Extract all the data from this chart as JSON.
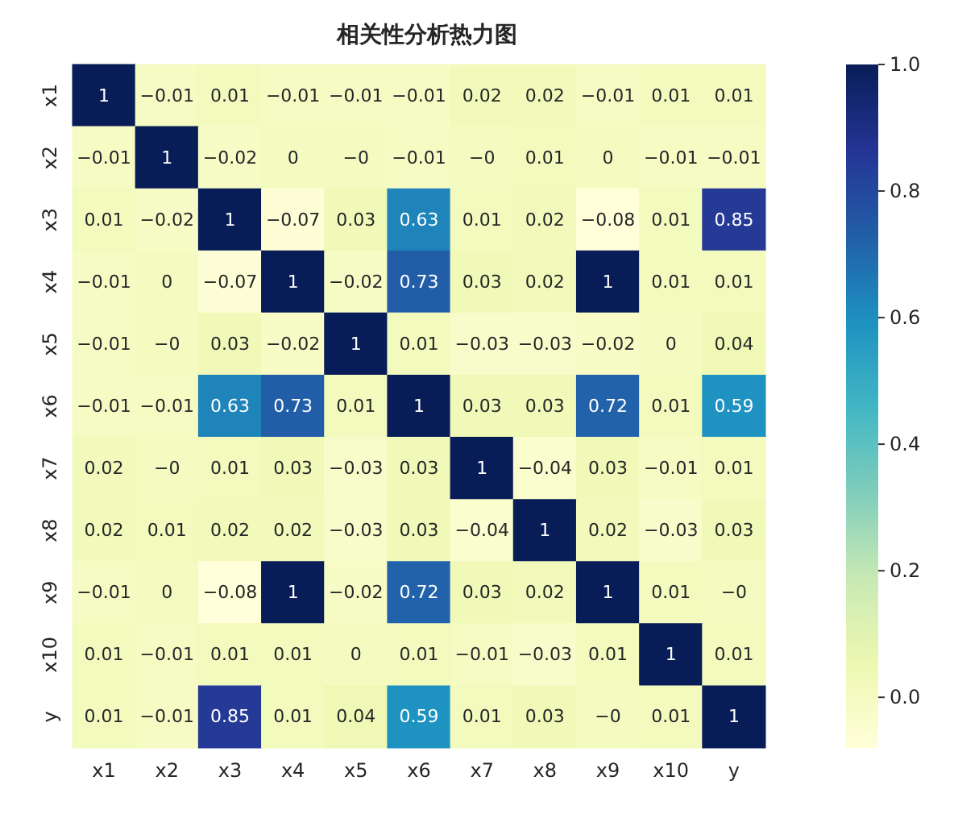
{
  "chart_data": {
    "type": "heatmap",
    "title": "相关性分析热力图",
    "categories": [
      "x1",
      "x2",
      "x3",
      "x4",
      "x5",
      "x6",
      "x7",
      "x8",
      "x9",
      "x10",
      "y"
    ],
    "y_categories": [
      "x1",
      "x2",
      "x3",
      "x4",
      "x5",
      "x6",
      "x7",
      "x8",
      "x9",
      "x10",
      "y"
    ],
    "cells": [
      [
        1,
        -0.01,
        0.01,
        -0.01,
        -0.01,
        -0.01,
        0.02,
        0.02,
        -0.01,
        0.01,
        0.01
      ],
      [
        -0.01,
        1,
        -0.02,
        0,
        0,
        -0.01,
        0,
        0.01,
        0,
        -0.01,
        -0.01
      ],
      [
        0.01,
        -0.02,
        1,
        -0.07,
        0.03,
        0.63,
        0.01,
        0.02,
        -0.08,
        0.01,
        0.85
      ],
      [
        -0.01,
        0,
        -0.07,
        1,
        -0.02,
        0.73,
        0.03,
        0.02,
        1,
        0.01,
        0.01
      ],
      [
        -0.01,
        0,
        0.03,
        -0.02,
        1,
        0.01,
        -0.03,
        -0.03,
        -0.02,
        0,
        0.04
      ],
      [
        -0.01,
        -0.01,
        0.63,
        0.73,
        0.01,
        1,
        0.03,
        0.03,
        0.72,
        0.01,
        0.59
      ],
      [
        0.02,
        0,
        0.01,
        0.03,
        -0.03,
        0.03,
        1,
        -0.04,
        0.03,
        -0.01,
        0.01
      ],
      [
        0.02,
        0.01,
        0.02,
        0.02,
        -0.03,
        0.03,
        -0.04,
        1,
        0.02,
        -0.03,
        0.03
      ],
      [
        -0.01,
        0,
        -0.08,
        1,
        -0.02,
        0.72,
        0.03,
        0.02,
        1,
        0.01,
        0
      ],
      [
        0.01,
        -0.01,
        0.01,
        0.01,
        0,
        0.01,
        -0.01,
        -0.03,
        0.01,
        1,
        0.01
      ],
      [
        0.01,
        -0.01,
        0.85,
        0.01,
        0.04,
        0.59,
        0.01,
        0.03,
        0,
        0.01,
        1
      ]
    ],
    "cell_labels": [
      [
        "1",
        "−0.01",
        "0.01",
        "−0.01",
        "−0.01",
        "−0.01",
        "0.02",
        "0.02",
        "−0.01",
        "0.01",
        "0.01"
      ],
      [
        "−0.01",
        "1",
        "−0.02",
        "0",
        "−0",
        "−0.01",
        "−0",
        "0.01",
        "0",
        "−0.01",
        "−0.01"
      ],
      [
        "0.01",
        "−0.02",
        "1",
        "−0.07",
        "0.03",
        "0.63",
        "0.01",
        "0.02",
        "−0.08",
        "0.01",
        "0.85"
      ],
      [
        "−0.01",
        "0",
        "−0.07",
        "1",
        "−0.02",
        "0.73",
        "0.03",
        "0.02",
        "1",
        "0.01",
        "0.01"
      ],
      [
        "−0.01",
        "−0",
        "0.03",
        "−0.02",
        "1",
        "0.01",
        "−0.03",
        "−0.03",
        "−0.02",
        "0",
        "0.04"
      ],
      [
        "−0.01",
        "−0.01",
        "0.63",
        "0.73",
        "0.01",
        "1",
        "0.03",
        "0.03",
        "0.72",
        "0.01",
        "0.59"
      ],
      [
        "0.02",
        "−0",
        "0.01",
        "0.03",
        "−0.03",
        "0.03",
        "1",
        "−0.04",
        "0.03",
        "−0.01",
        "0.01"
      ],
      [
        "0.02",
        "0.01",
        "0.02",
        "0.02",
        "−0.03",
        "0.03",
        "−0.04",
        "1",
        "0.02",
        "−0.03",
        "0.03"
      ],
      [
        "−0.01",
        "0",
        "−0.08",
        "1",
        "−0.02",
        "0.72",
        "0.03",
        "0.02",
        "1",
        "0.01",
        "−0"
      ],
      [
        "0.01",
        "−0.01",
        "0.01",
        "0.01",
        "0",
        "0.01",
        "−0.01",
        "−0.03",
        "0.01",
        "1",
        "0.01"
      ],
      [
        "0.01",
        "−0.01",
        "0.85",
        "0.01",
        "0.04",
        "0.59",
        "0.01",
        "0.03",
        "−0",
        "0.01",
        "1"
      ]
    ],
    "clim": [
      -0.08,
      1.0
    ],
    "cticks": [
      {
        "value": 0,
        "label": "0.0"
      },
      {
        "value": 0.2,
        "label": "0.2"
      },
      {
        "value": 0.4,
        "label": "0.4"
      },
      {
        "value": 0.6,
        "label": "0.6"
      },
      {
        "value": 0.8,
        "label": "0.8"
      },
      {
        "value": 1.0,
        "label": "1.0"
      }
    ]
  }
}
